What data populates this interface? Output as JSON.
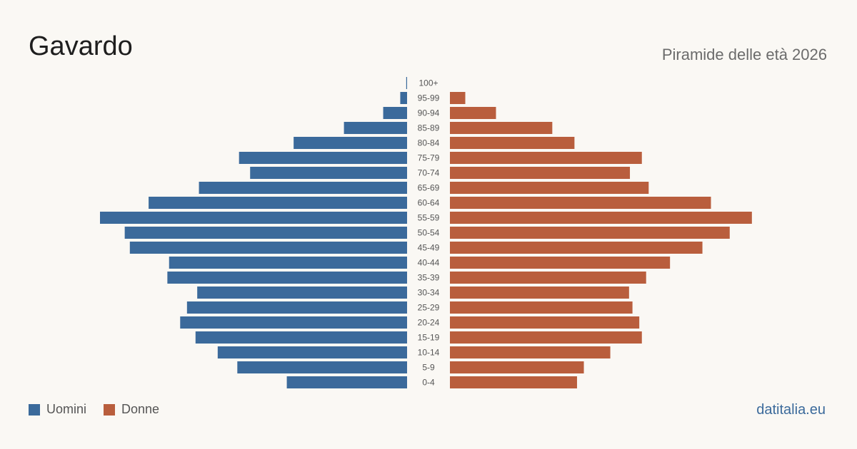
{
  "title": "Gavardo",
  "subtitle": "Piramide delle età 2026",
  "brand": "datitalia.eu",
  "colors": {
    "men": "#3b6a9b",
    "women": "#b95e3d",
    "label": "#555555"
  },
  "legend": {
    "men": "Uomini",
    "women": "Donne"
  },
  "chart_data": {
    "type": "bar",
    "orientation": "horizontal",
    "layout": "population-pyramid",
    "categories": [
      "100+",
      "95-99",
      "90-94",
      "85-89",
      "80-84",
      "75-79",
      "70-74",
      "65-69",
      "60-64",
      "55-59",
      "50-54",
      "45-49",
      "40-44",
      "35-39",
      "30-34",
      "25-29",
      "20-24",
      "15-19",
      "10-14",
      "5-9",
      "0-4"
    ],
    "series": [
      {
        "name": "Uomini",
        "values": [
          1,
          8,
          28,
          74,
          133,
          197,
          184,
          244,
          303,
          360,
          331,
          325,
          279,
          281,
          246,
          258,
          266,
          248,
          222,
          199,
          141
        ]
      },
      {
        "name": "Donne",
        "values": [
          0,
          18,
          54,
          120,
          146,
          225,
          211,
          233,
          306,
          354,
          328,
          296,
          258,
          230,
          210,
          214,
          222,
          225,
          188,
          157,
          149
        ]
      }
    ],
    "xlim": [
      0,
      360
    ]
  }
}
